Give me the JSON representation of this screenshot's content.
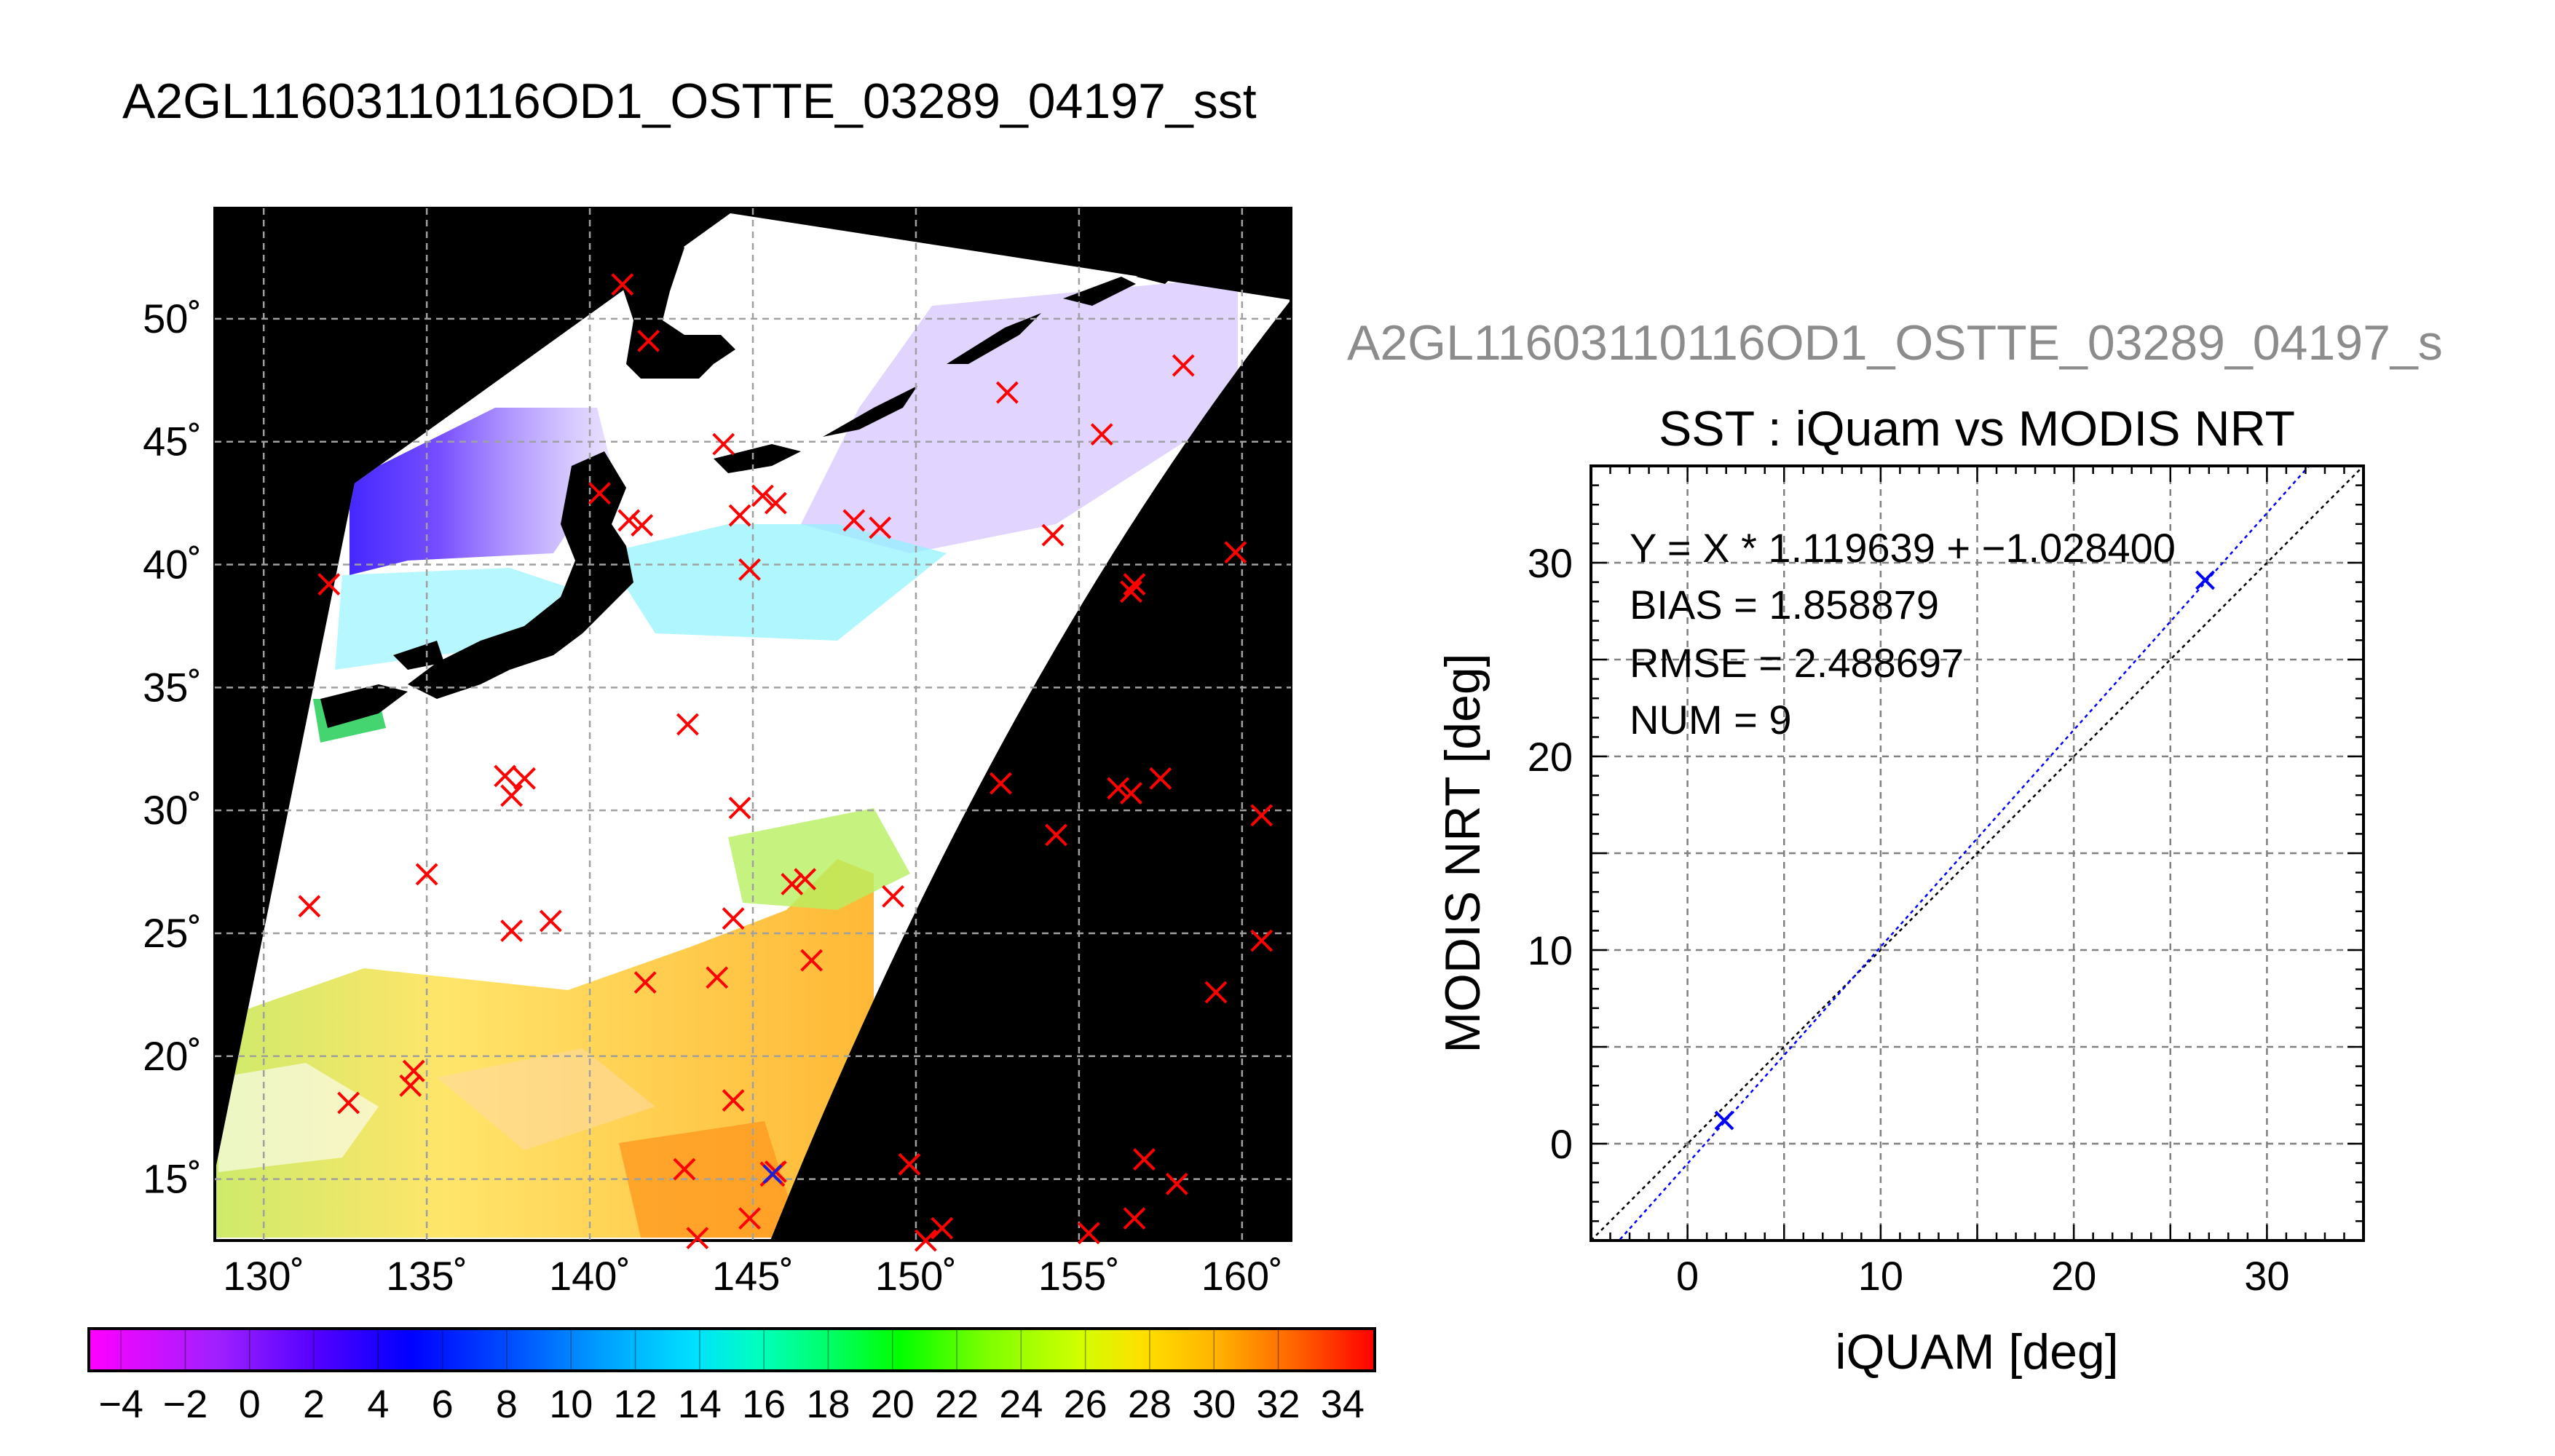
{
  "window_title": "A2GL11603110116OD1_OSTTE_03289_04197_sst",
  "map": {
    "lon_ticks": [
      "130˚",
      "135˚",
      "140˚",
      "145˚",
      "150˚",
      "155˚",
      "160˚"
    ],
    "lat_ticks": [
      "15˚",
      "20˚",
      "25˚",
      "30˚",
      "35˚",
      "40˚",
      "45˚",
      "50˚"
    ],
    "colorbar_ticks": [
      "−4",
      "−2",
      "0",
      "2",
      "4",
      "6",
      "8",
      "10",
      "12",
      "14",
      "16",
      "18",
      "20",
      "22",
      "24",
      "26",
      "28",
      "30",
      "32",
      "34"
    ],
    "buoy_marker_color": "#ff0000",
    "matched_marker_color": "#2020d0"
  },
  "scatter": {
    "file_title": "A2GL11603110116OD1_OSTTE_03289_04197_s",
    "stats": {
      "equation": "Y = X * 1.119639 + −1.028400",
      "bias": "BIAS = 1.858879",
      "rmse": "RMSE = 2.488697",
      "num": "NUM = 9"
    }
  },
  "chart_data": [
    {
      "type": "heatmap",
      "title": "A2GL11603110116OD1_OSTTE_03289_04197_sst",
      "xlabel": "",
      "ylabel": "",
      "xlim": [
        128.5,
        161.5
      ],
      "ylim": [
        12.5,
        54.5
      ],
      "grid": true,
      "colorbar": {
        "min": -5,
        "max": 35,
        "ticks": [
          -4,
          -2,
          0,
          2,
          4,
          6,
          8,
          10,
          12,
          14,
          16,
          18,
          20,
          22,
          24,
          26,
          28,
          30,
          32,
          34
        ]
      },
      "buoy_points": [
        [
          131.4,
          26.1
        ],
        [
          132.0,
          39.2
        ],
        [
          132.6,
          18.1
        ],
        [
          134.6,
          19.4
        ],
        [
          134.5,
          18.8
        ],
        [
          135.0,
          27.4
        ],
        [
          137.4,
          31.4
        ],
        [
          137.6,
          30.6
        ],
        [
          138.0,
          31.3
        ],
        [
          137.6,
          25.1
        ],
        [
          138.8,
          25.5
        ],
        [
          140.3,
          42.9
        ],
        [
          141.0,
          51.4
        ],
        [
          141.2,
          41.8
        ],
        [
          141.6,
          41.6
        ],
        [
          141.8,
          49.1
        ],
        [
          141.7,
          23.0
        ],
        [
          143.0,
          33.5
        ],
        [
          142.9,
          15.4
        ],
        [
          143.3,
          12.6
        ],
        [
          143.9,
          23.2
        ],
        [
          144.1,
          44.9
        ],
        [
          144.4,
          18.2
        ],
        [
          144.4,
          25.6
        ],
        [
          144.6,
          30.1
        ],
        [
          144.6,
          42.0
        ],
        [
          144.9,
          39.8
        ],
        [
          144.9,
          13.4
        ],
        [
          145.3,
          42.8
        ],
        [
          145.7,
          42.5
        ],
        [
          145.7,
          15.3
        ],
        [
          146.2,
          27.0
        ],
        [
          146.6,
          27.2
        ],
        [
          146.8,
          23.9
        ],
        [
          148.1,
          41.8
        ],
        [
          148.9,
          41.5
        ],
        [
          149.3,
          26.5
        ],
        [
          149.8,
          15.6
        ],
        [
          150.3,
          12.5
        ],
        [
          150.8,
          13.0
        ],
        [
          152.6,
          31.1
        ],
        [
          152.8,
          47.0
        ],
        [
          154.2,
          41.2
        ],
        [
          154.3,
          29.0
        ],
        [
          155.3,
          12.8
        ],
        [
          155.7,
          45.3
        ],
        [
          156.2,
          30.9
        ],
        [
          156.6,
          30.7
        ],
        [
          156.6,
          38.9
        ],
        [
          156.7,
          39.2
        ],
        [
          156.7,
          13.4
        ],
        [
          157.0,
          15.8
        ],
        [
          157.5,
          31.3
        ],
        [
          158.0,
          14.8
        ],
        [
          158.2,
          48.1
        ],
        [
          159.2,
          22.6
        ],
        [
          159.8,
          40.5
        ],
        [
          160.6,
          29.8
        ],
        [
          160.6,
          24.7
        ]
      ],
      "matched_points": [
        [
          145.6,
          15.2
        ]
      ]
    },
    {
      "type": "scatter",
      "title": "SST : iQuam vs MODIS NRT",
      "xlabel": "iQUAM [deg]",
      "ylabel": "MODIS NRT [deg]",
      "xlim": [
        -5,
        35
      ],
      "ylim": [
        -5,
        35
      ],
      "xticks": [
        0,
        10,
        20,
        30
      ],
      "yticks": [
        0,
        10,
        20,
        30
      ],
      "grid": true,
      "points": [
        {
          "x": 1.9,
          "y": 1.2
        },
        {
          "x": 26.8,
          "y": 29.1
        }
      ],
      "lines": [
        {
          "name": "Y = X",
          "slope": 1.0,
          "intercept": 0.0,
          "color": "#000000",
          "style": "dotted"
        },
        {
          "name": "fit",
          "slope": 1.119639,
          "intercept": -1.0284,
          "color": "#0000ff",
          "style": "dotted"
        }
      ]
    }
  ]
}
